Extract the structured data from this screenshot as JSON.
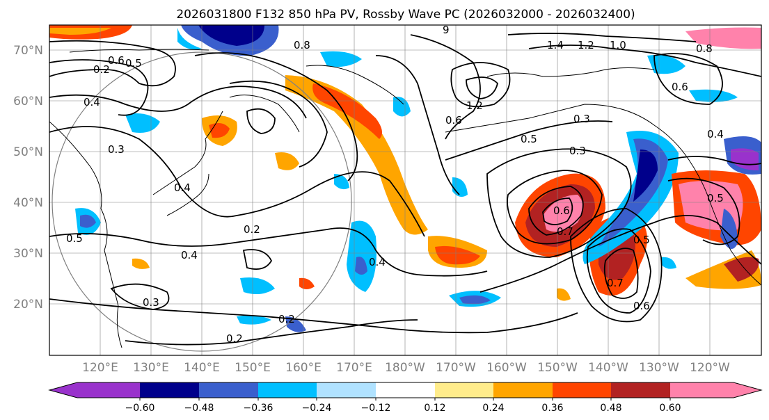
{
  "title": "2026031800 F132 850 hPa PV, Rossby Wave PC (2026032000 - 2026032400)",
  "lat_labels": [
    "70°N",
    "60°N",
    "50°N",
    "40°N",
    "30°N",
    "20°N"
  ],
  "lon_labels": [
    "120°E",
    "130°E",
    "140°E",
    "150°E",
    "160°E",
    "170°E",
    "180°W",
    "170°W",
    "160°W",
    "150°W",
    "140°W",
    "130°W",
    "120°W"
  ],
  "colorbar": {
    "colors": [
      "#9932cc",
      "#00008b",
      "#3a5fcd",
      "#00bfff",
      "#b0e2ff",
      "#ffffff",
      "#ffec8b",
      "#ffa500",
      "#ff4500",
      "#b22222",
      "#ff82ab"
    ],
    "tick_labels": [
      "−0.60",
      "−0.48",
      "−0.36",
      "−0.24",
      "−0.12",
      "0.12",
      "0.24",
      "0.36",
      "0.48",
      "0.60"
    ]
  },
  "contour_labels": [
    {
      "text": "0.2",
      "id": "a"
    },
    {
      "text": "0.6",
      "id": "b"
    },
    {
      "text": "0.5",
      "id": "c"
    },
    {
      "text": "0.4",
      "id": "d"
    },
    {
      "text": "0.3",
      "id": "e"
    },
    {
      "text": "0.8",
      "id": "f"
    },
    {
      "text": "9",
      "id": "g"
    },
    {
      "text": "1.4",
      "id": "h"
    },
    {
      "text": "1.2",
      "id": "i"
    },
    {
      "text": "1.0",
      "id": "j"
    },
    {
      "text": "1.2",
      "id": "k"
    },
    {
      "text": "0.6",
      "id": "l"
    },
    {
      "text": "0.5",
      "id": "m"
    },
    {
      "text": "0.3",
      "id": "n"
    },
    {
      "text": "0.3",
      "id": "o"
    },
    {
      "text": "0.4",
      "id": "p"
    },
    {
      "text": "0.2",
      "id": "q"
    },
    {
      "text": "0.4",
      "id": "r"
    },
    {
      "text": "0.4",
      "id": "s"
    },
    {
      "text": "0.2",
      "id": "t"
    },
    {
      "text": "0.2",
      "id": "u"
    },
    {
      "text": "0.3",
      "id": "v"
    },
    {
      "text": "0.6",
      "id": "w"
    },
    {
      "text": "0.7",
      "id": "x"
    },
    {
      "text": "0.5",
      "id": "y"
    },
    {
      "text": "0.7",
      "id": "z"
    },
    {
      "text": "0.5",
      "id": "aa"
    },
    {
      "text": "0.6",
      "id": "ab"
    },
    {
      "text": "0.4",
      "id": "ac"
    },
    {
      "text": "0.5",
      "id": "ad"
    },
    {
      "text": "0.8",
      "id": "ae"
    },
    {
      "text": "0.6",
      "id": "af"
    }
  ]
}
